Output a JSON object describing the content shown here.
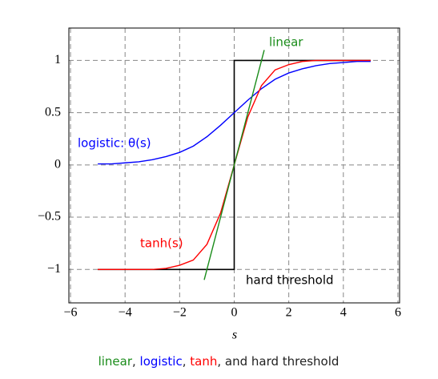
{
  "chart_data": {
    "type": "line",
    "x_label": "s",
    "xlim": [
      -6.06,
      6.06
    ],
    "ylim": [
      -1.32,
      1.31
    ],
    "xticks": [
      {
        "value": -6,
        "label": "−6"
      },
      {
        "value": -4,
        "label": "−4"
      },
      {
        "value": -2,
        "label": "−2"
      },
      0,
      2,
      4,
      6
    ],
    "yticks": [
      {
        "value": -1,
        "label": "−1"
      },
      {
        "value": -0.5,
        "label": "−0.5"
      },
      0,
      0.5,
      1
    ],
    "grid": true,
    "series": [
      {
        "name": "linear",
        "color": "#1a8c1a",
        "x": [
          -1.1,
          1.1
        ],
        "values": [
          -1.1,
          1.1
        ]
      },
      {
        "name": "logistic",
        "color": "#0000ff",
        "x": [
          -5,
          -4.5,
          -4,
          -3.5,
          -3,
          -2.5,
          -2,
          -1.5,
          -1,
          -0.5,
          0,
          0.5,
          1,
          1.5,
          2,
          2.5,
          3,
          3.5,
          4,
          4.5,
          5
        ],
        "values": [
          0.01,
          0.01,
          0.02,
          0.03,
          0.05,
          0.08,
          0.12,
          0.18,
          0.27,
          0.38,
          0.5,
          0.62,
          0.73,
          0.82,
          0.88,
          0.92,
          0.95,
          0.97,
          0.98,
          0.99,
          0.99
        ]
      },
      {
        "name": "tanh",
        "color": "#ff0000",
        "x": [
          -5,
          -3,
          -2.5,
          -2,
          -1.5,
          -1,
          -0.5,
          0,
          0.5,
          1,
          1.5,
          2,
          2.5,
          3,
          5
        ],
        "values": [
          -1,
          -1,
          -0.99,
          -0.96,
          -0.91,
          -0.76,
          -0.46,
          0,
          0.46,
          0.76,
          0.91,
          0.96,
          0.99,
          1,
          1
        ]
      },
      {
        "name": "hard threshold",
        "color": "#000000",
        "x": [
          -5,
          0,
          0,
          5
        ],
        "values": [
          -1,
          -1,
          1,
          1
        ]
      }
    ],
    "annotations": [
      "linear",
      "logistic: θ(s)",
      "tanh(s)",
      "hard threshold"
    ],
    "caption_separators": [
      ", ",
      ", ",
      ", and "
    ]
  }
}
